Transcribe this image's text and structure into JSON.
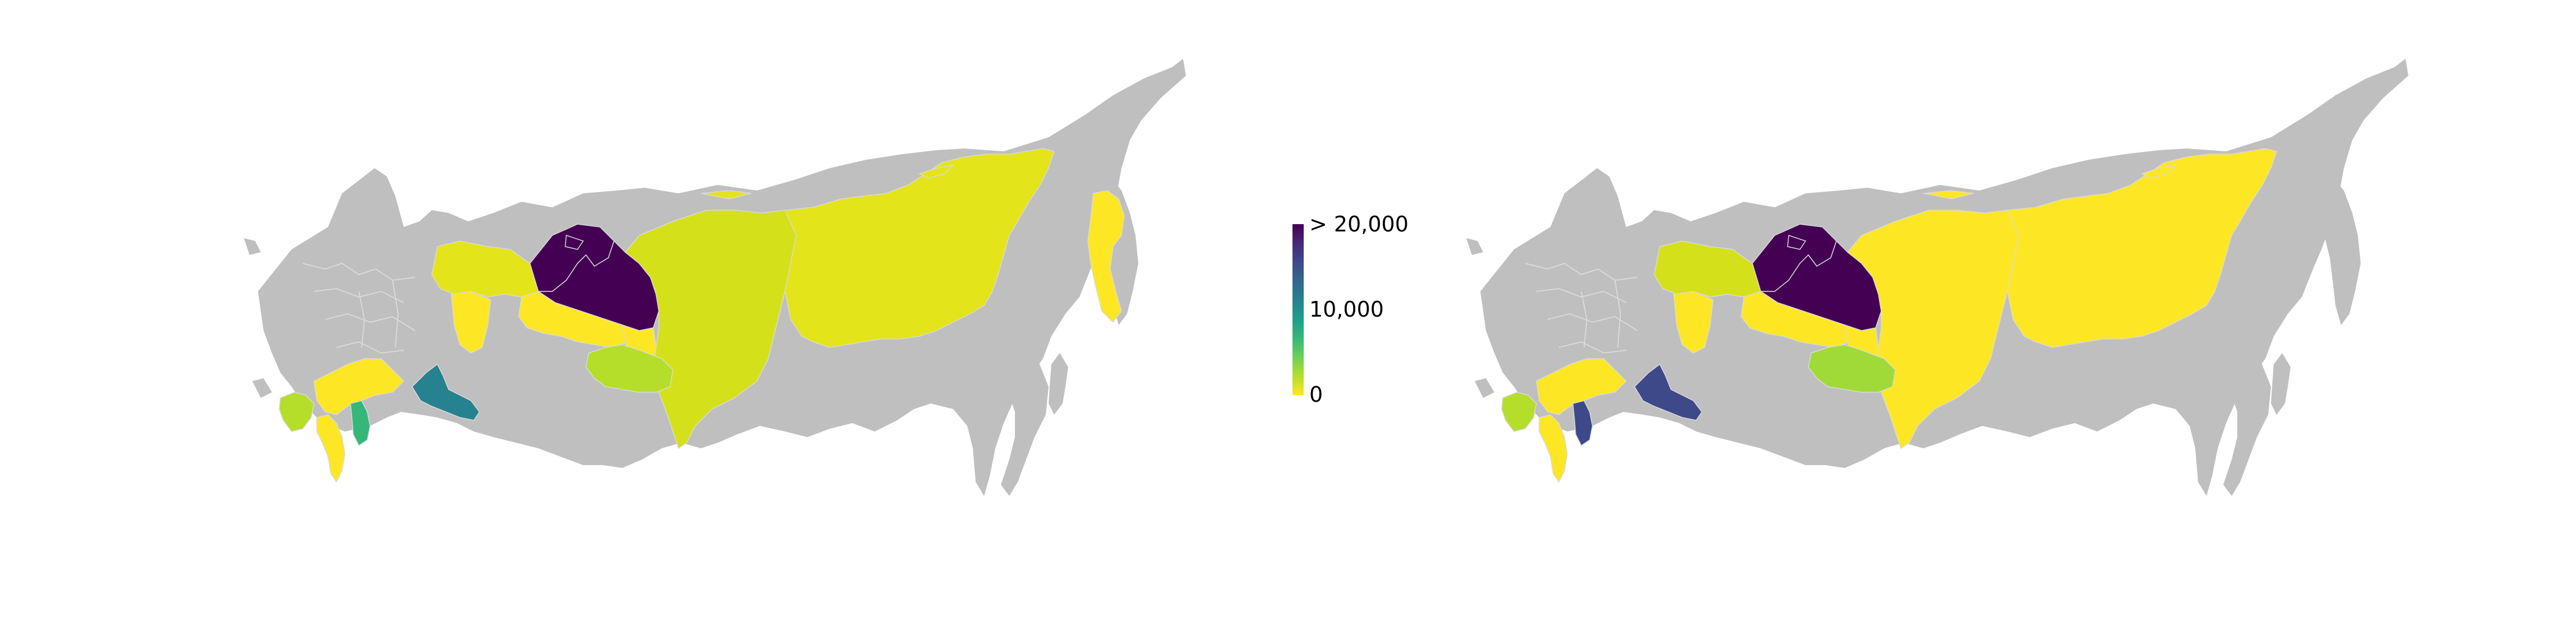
{
  "figure": {
    "legend": {
      "max_label": "> 20,000",
      "mid_label": "10,000",
      "min_label": "0",
      "colors": [
        "#fde725",
        "#b5de2b",
        "#6ece58",
        "#35b779",
        "#1f9e89",
        "#26828e",
        "#31688e",
        "#3e4989",
        "#482878",
        "#440154"
      ]
    },
    "no_data_color": "#bfbfbf",
    "border_color": "#d9d9d9"
  },
  "maps": [
    {
      "name": "left",
      "regions": [
        {
          "id": "yamalo-nenets",
          "color": "#440154"
        },
        {
          "id": "khanty-mansi",
          "color": "#440154"
        },
        {
          "id": "krasnoyarsk",
          "color": "#d4e11a"
        },
        {
          "id": "sakha",
          "color": "#e4e41b"
        },
        {
          "id": "nenets-komi",
          "color": "#e4e41b"
        },
        {
          "id": "komi-south",
          "color": "#fde725"
        },
        {
          "id": "tomsk",
          "color": "#fde725"
        },
        {
          "id": "novosibirsk",
          "color": "#b5de2b"
        },
        {
          "id": "tyumen",
          "color": "#fde725"
        },
        {
          "id": "chukotka-kamchatka",
          "color": "#fde725"
        },
        {
          "id": "orenburg",
          "color": "#26828e"
        },
        {
          "id": "volgograd-astrakhan",
          "color": "#fde725"
        },
        {
          "id": "kalmykia",
          "color": "#35b779"
        },
        {
          "id": "krasnodar",
          "color": "#b5de2b"
        },
        {
          "id": "dagestan",
          "color": "#fde725"
        }
      ]
    },
    {
      "name": "right",
      "regions": [
        {
          "id": "yamalo-nenets",
          "color": "#440154"
        },
        {
          "id": "khanty-mansi",
          "color": "#440154"
        },
        {
          "id": "krasnoyarsk",
          "color": "#fde725"
        },
        {
          "id": "sakha",
          "color": "#fde725"
        },
        {
          "id": "nenets-komi",
          "color": "#d4e11a"
        },
        {
          "id": "komi-south",
          "color": "#fde725"
        },
        {
          "id": "tomsk",
          "color": "#fde725"
        },
        {
          "id": "novosibirsk",
          "color": "#a0da39"
        },
        {
          "id": "tyumen",
          "color": "#fde725"
        },
        {
          "id": "orenburg",
          "color": "#3e4989"
        },
        {
          "id": "volgograd-astrakhan",
          "color": "#fde725"
        },
        {
          "id": "kalmykia",
          "color": "#3e4989"
        },
        {
          "id": "krasnodar",
          "color": "#b5de2b"
        },
        {
          "id": "dagestan",
          "color": "#fde725"
        }
      ]
    }
  ]
}
